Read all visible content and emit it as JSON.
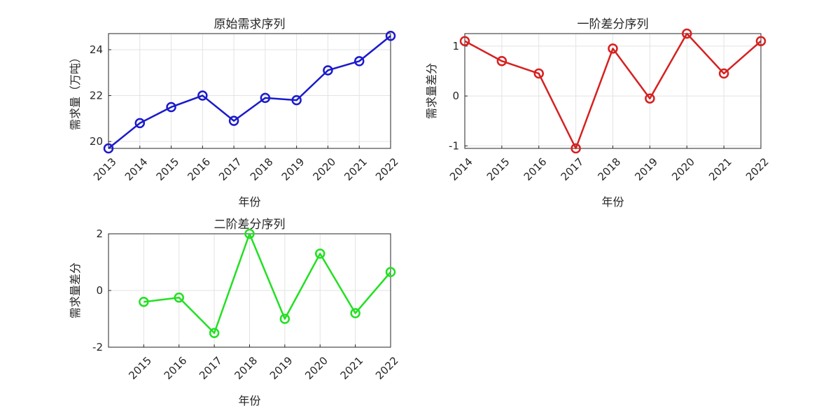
{
  "chart_data": [
    {
      "type": "line",
      "title": "原始需求序列",
      "xlabel": "年份",
      "ylabel": "需求量（万吨）",
      "color": "#1a1acc",
      "marker": "circle",
      "grid": true,
      "x": [
        "2013",
        "2014",
        "2015",
        "2016",
        "2017",
        "2018",
        "2019",
        "2020",
        "2021",
        "2022"
      ],
      "values": [
        19.7,
        20.8,
        21.5,
        22.0,
        20.9,
        21.9,
        21.8,
        23.1,
        23.5,
        24.6
      ],
      "ylim": [
        19.7,
        24.7
      ],
      "yticks": [
        "20",
        "22",
        "24"
      ],
      "ytick_values": [
        20,
        22,
        24
      ]
    },
    {
      "type": "line",
      "title": "一阶差分序列",
      "xlabel": "年份",
      "ylabel": "需求量差分",
      "color": "#d62020",
      "marker": "circle",
      "grid": true,
      "x": [
        "2014",
        "2015",
        "2016",
        "2017",
        "2018",
        "2019",
        "2020",
        "2021",
        "2022"
      ],
      "values": [
        1.1,
        0.7,
        0.45,
        -1.05,
        0.95,
        -0.05,
        1.25,
        0.45,
        1.1
      ],
      "ylim": [
        -1.05,
        1.25
      ],
      "yticks": [
        "-1",
        "0",
        "1"
      ],
      "ytick_values": [
        -1,
        0,
        1
      ]
    },
    {
      "type": "line",
      "title": "二阶差分序列",
      "xlabel": "年份",
      "ylabel": "需求量差分",
      "color": "#22e022",
      "marker": "circle",
      "grid": true,
      "x": [
        "2015",
        "2016",
        "2017",
        "2018",
        "2019",
        "2020",
        "2021",
        "2022"
      ],
      "values": [
        -0.4,
        -0.25,
        -1.5,
        2.0,
        -1.0,
        1.3,
        -0.8,
        0.65
      ],
      "ylim": [
        -2,
        2
      ],
      "yticks": [
        "-2",
        "0",
        "2"
      ],
      "ytick_values": [
        -2,
        0,
        2
      ],
      "xlim_pad_left": 1
    }
  ]
}
